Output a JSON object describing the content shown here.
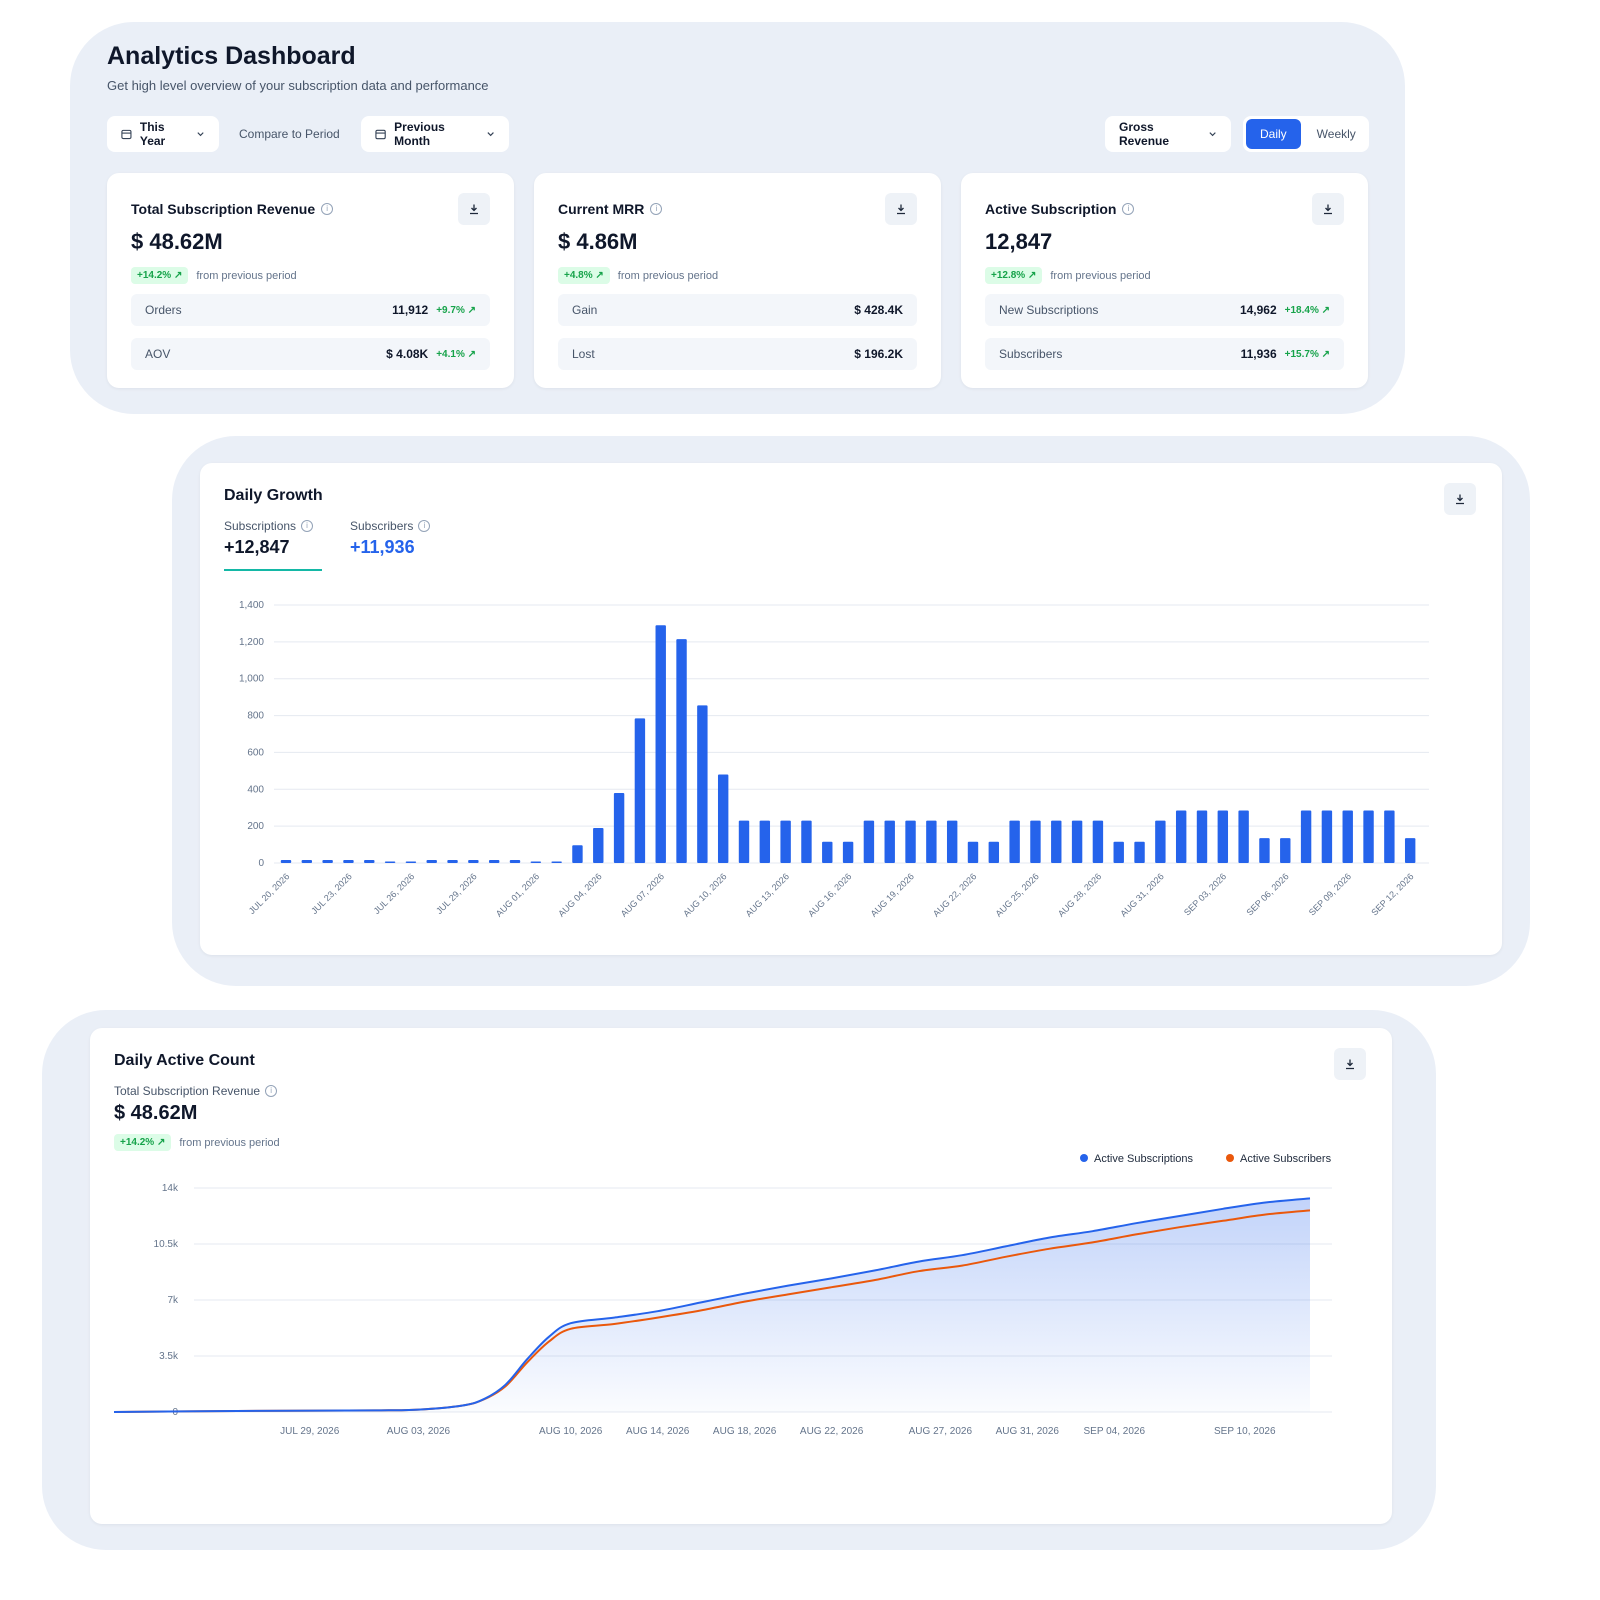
{
  "header": {
    "title": "Analytics Dashboard",
    "subtitle": "Get high level overview of your subscription data and performance"
  },
  "filters": {
    "period": "This Year",
    "compare_label": "Compare to Period",
    "compare_period": "Previous Month",
    "metric": "Gross Revenue",
    "granularity": [
      "Daily",
      "Weekly"
    ],
    "granularity_active": "Daily"
  },
  "kpis": [
    {
      "title": "Total Subscription Revenue",
      "value": "$ 48.62M",
      "delta": "+14.2% ↗",
      "delta_note": "from previous period",
      "rows": [
        {
          "label": "Orders",
          "value": "11,912",
          "pct": "+9.7% ↗"
        },
        {
          "label": "AOV",
          "value": "$ 4.08K",
          "pct": "+4.1% ↗"
        }
      ]
    },
    {
      "title": "Current MRR",
      "value": "$ 4.86M",
      "delta": "+4.8% ↗",
      "delta_note": "from previous period",
      "rows": [
        {
          "label": "Gain",
          "value": "$ 428.4K",
          "pct": ""
        },
        {
          "label": "Lost",
          "value": "$ 196.2K",
          "pct": ""
        }
      ]
    },
    {
      "title": "Active Subscription",
      "value": "12,847",
      "delta": "+12.8% ↗",
      "delta_note": "from previous period",
      "rows": [
        {
          "label": "New Subscriptions",
          "value": "14,962",
          "pct": "+18.4% ↗"
        },
        {
          "label": "Subscribers",
          "value": "11,936",
          "pct": "+15.7% ↗"
        }
      ]
    }
  ],
  "daily_growth": {
    "title": "Daily Growth",
    "tabs": [
      {
        "label": "Subscriptions",
        "value": "+12,847"
      },
      {
        "label": "Subscribers",
        "value": "+11,936"
      }
    ]
  },
  "daily_active": {
    "title": "Daily Active Count",
    "metric_label": "Total Subscription Revenue",
    "metric_value": "$ 48.62M",
    "delta": "+14.2% ↗",
    "delta_note": "from previous period"
  },
  "colors": {
    "accent": "#2563eb",
    "secondary": "#ea580c",
    "positive": "#16a34a",
    "panel": "#eaeff7"
  },
  "chart_data": [
    {
      "type": "bar",
      "categories": [
        "JUL 20, 2026",
        "JUL 21, 2026",
        "JUL 22, 2026",
        "JUL 23, 2026",
        "JUL 24, 2026",
        "JUL 25, 2026",
        "JUL 26, 2026",
        "JUL 27, 2026",
        "JUL 28, 2026",
        "JUL 29, 2026",
        "JUL 30, 2026",
        "JUL 31, 2026",
        "AUG 01, 2026",
        "AUG 02, 2026",
        "AUG 03, 2026",
        "AUG 04, 2026",
        "AUG 05, 2026",
        "AUG 06, 2026",
        "AUG 07, 2026",
        "AUG 08, 2026",
        "AUG 09, 2026",
        "AUG 10, 2026",
        "AUG 11, 2026",
        "AUG 12, 2026",
        "AUG 13, 2026",
        "AUG 14, 2026",
        "AUG 15, 2026",
        "AUG 16, 2026",
        "AUG 17, 2026",
        "AUG 18, 2026",
        "AUG 19, 2026",
        "AUG 20, 2026",
        "AUG 21, 2026",
        "AUG 22, 2026",
        "AUG 23, 2026",
        "AUG 24, 2026",
        "AUG 25, 2026",
        "AUG 26, 2026",
        "AUG 27, 2026",
        "AUG 28, 2026",
        "AUG 29, 2026",
        "AUG 30, 2026",
        "AUG 31, 2026",
        "SEP 01, 2026",
        "SEP 02, 2026",
        "SEP 03, 2026",
        "SEP 04, 2026",
        "SEP 05, 2026",
        "SEP 06, 2026",
        "SEP 07, 2026",
        "SEP 08, 2026",
        "SEP 09, 2026",
        "SEP 10, 2026",
        "SEP 11, 2026",
        "SEP 12, 2026"
      ],
      "tick_labels": [
        "JUL 20, 2026",
        "JUL 23, 2026",
        "JUL 26, 2026",
        "JUL 29, 2026",
        "AUG 01, 2026",
        "AUG 04, 2026",
        "AUG 07, 2026",
        "AUG 10, 2026",
        "AUG 13, 2026",
        "AUG 16, 2026",
        "AUG 19, 2026",
        "AUG 22, 2026",
        "AUG 25, 2026",
        "AUG 28, 2026",
        "AUG 31, 2026",
        "SEP 03, 2026",
        "SEP 06, 2026",
        "SEP 09, 2026",
        "SEP 12, 2026"
      ],
      "values": [
        16,
        16,
        16,
        16,
        16,
        8,
        8,
        16,
        16,
        16,
        16,
        16,
        8,
        8,
        96,
        190,
        380,
        785,
        1290,
        1215,
        855,
        480,
        230,
        230,
        230,
        230,
        115,
        115,
        230,
        230,
        230,
        230,
        230,
        115,
        115,
        230,
        230,
        230,
        230,
        230,
        115,
        115,
        230,
        285,
        285,
        285,
        285,
        135,
        135,
        285,
        285,
        285,
        285,
        285,
        135
      ],
      "ylim": [
        0,
        1400
      ],
      "yticks": [
        0,
        200,
        400,
        600,
        800,
        1000,
        1200,
        1400
      ],
      "ytick_labels": [
        "0",
        "200",
        "400",
        "600",
        "800",
        "1,000",
        "1,200",
        "1,400"
      ],
      "grid": true
    },
    {
      "type": "area",
      "x": [
        "JUL 20, 2026",
        "JUL 24, 2026",
        "JUL 28, 2026",
        "AUG 01, 2026",
        "AUG 03, 2026",
        "AUG 05, 2026",
        "AUG 06, 2026",
        "AUG 07, 2026",
        "AUG 08, 2026",
        "AUG 09, 2026",
        "AUG 10, 2026",
        "AUG 12, 2026",
        "AUG 14, 2026",
        "AUG 16, 2026",
        "AUG 18, 2026",
        "AUG 20, 2026",
        "AUG 22, 2026",
        "AUG 24, 2026",
        "AUG 26, 2026",
        "AUG 28, 2026",
        "AUG 30, 2026",
        "SEP 01, 2026",
        "SEP 03, 2026",
        "SEP 05, 2026",
        "SEP 07, 2026",
        "SEP 09, 2026",
        "SEP 11, 2026",
        "SEP 13, 2026"
      ],
      "tick_labels": [
        "JUL 29, 2026",
        "AUG 03, 2026",
        "AUG 10, 2026",
        "AUG 14, 2026",
        "AUG 18, 2026",
        "AUG 22, 2026",
        "AUG 27, 2026",
        "AUG 31, 2026",
        "SEP 04, 2026",
        "SEP 10, 2026"
      ],
      "series": [
        {
          "name": "Active Subscriptions",
          "color": "#2563eb",
          "values": [
            0,
            50,
            80,
            100,
            150,
            400,
            800,
            1700,
            3300,
            4700,
            5550,
            5900,
            6300,
            6850,
            7400,
            7900,
            8350,
            8850,
            9400,
            9800,
            10350,
            10900,
            11300,
            11800,
            12250,
            12700,
            13100,
            13350
          ]
        },
        {
          "name": "Active Subscribers",
          "color": "#ea580c",
          "values": [
            0,
            50,
            80,
            100,
            150,
            400,
            780,
            1600,
            3100,
            4400,
            5200,
            5500,
            5900,
            6350,
            6900,
            7350,
            7800,
            8250,
            8800,
            9150,
            9700,
            10200,
            10600,
            11100,
            11550,
            11950,
            12350,
            12600
          ]
        }
      ],
      "ylim": [
        0,
        14000
      ],
      "yticks": [
        0,
        3500,
        7000,
        10500,
        14000
      ],
      "ytick_labels": [
        "0",
        "3.5k",
        "7k",
        "10.5k",
        "14k"
      ],
      "legend": "top-right",
      "grid": true
    }
  ]
}
